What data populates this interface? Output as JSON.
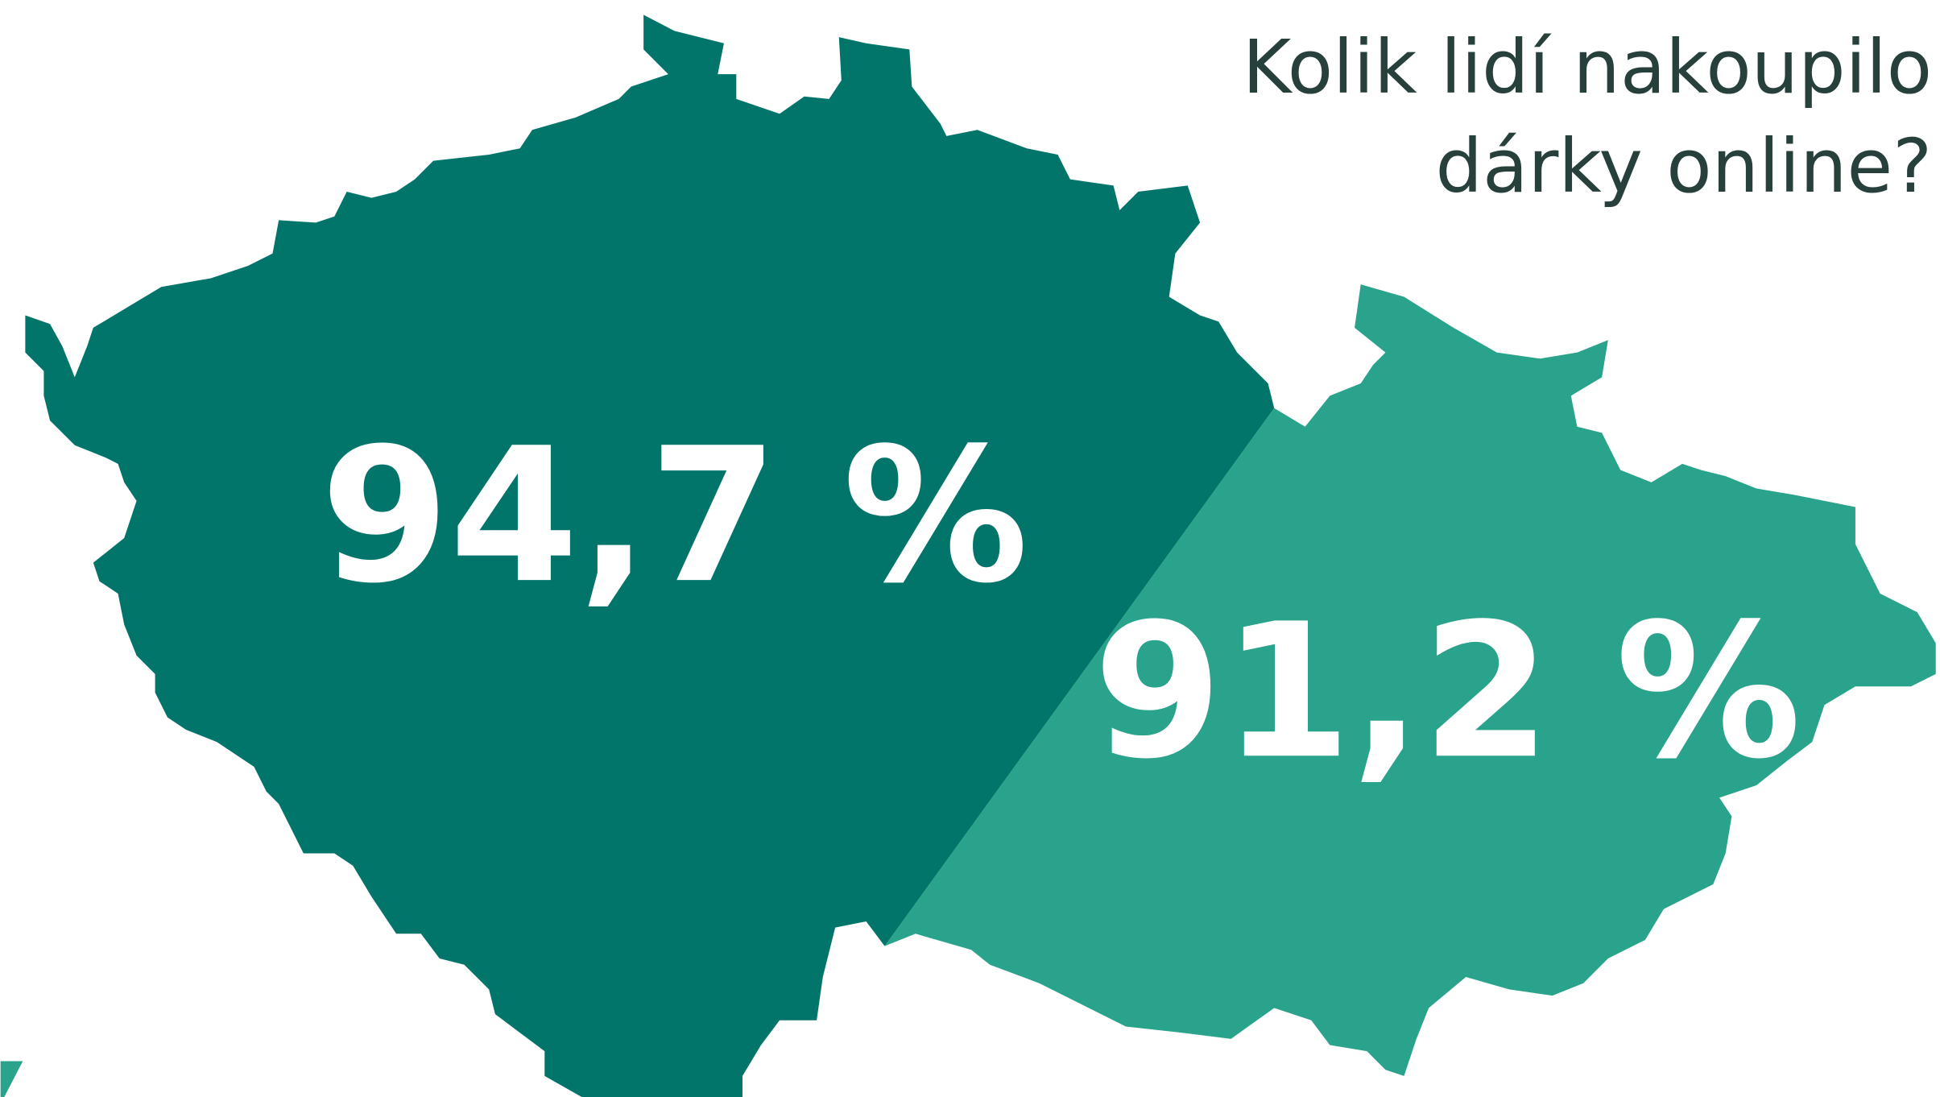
{
  "title": {
    "line1": "Kolik lidí nakoupilo",
    "line2": "dárky online?"
  },
  "regions": [
    {
      "label": "94,7 %"
    },
    {
      "label": "91,2 %"
    }
  ]
}
